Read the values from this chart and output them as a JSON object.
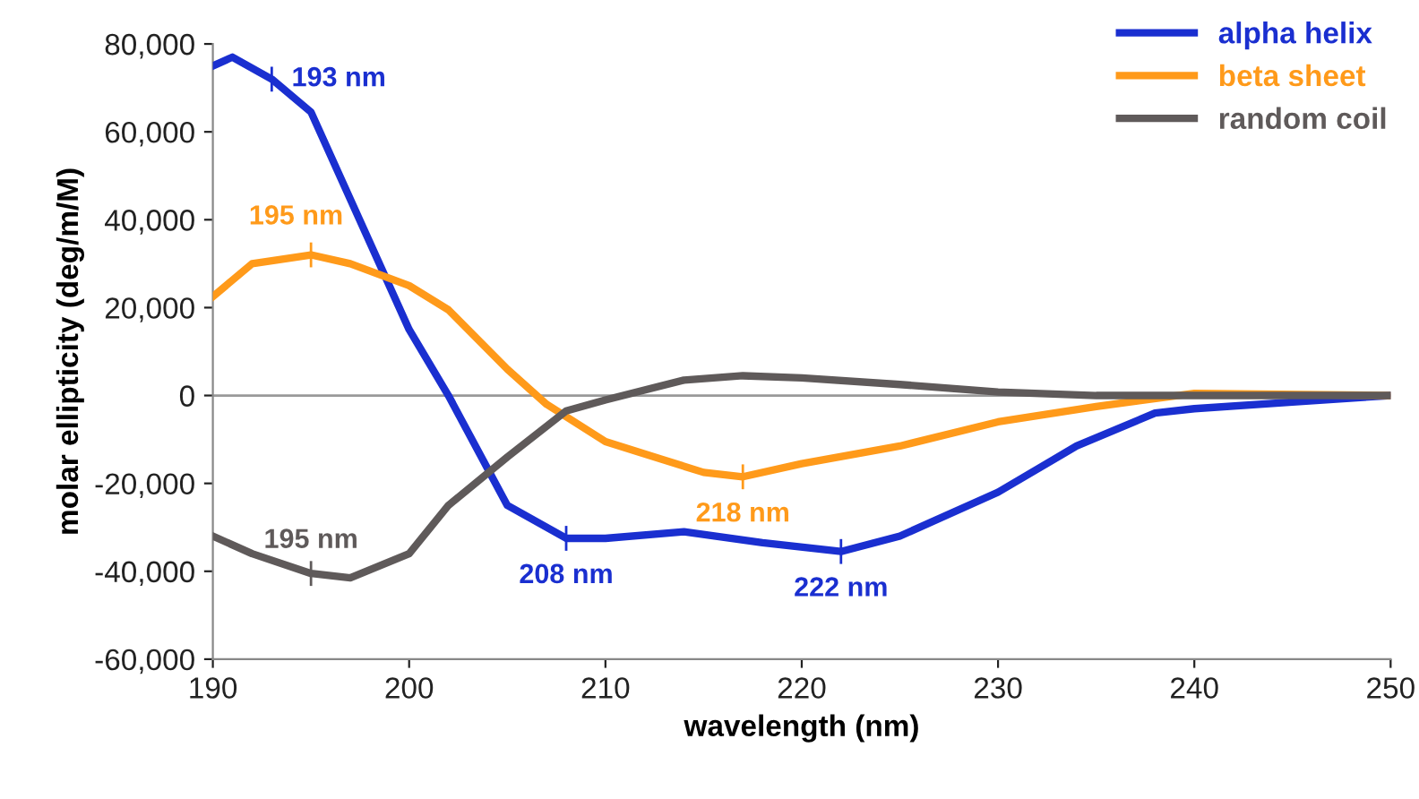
{
  "chart_data": {
    "type": "line",
    "xlabel": "wavelength (nm)",
    "ylabel": "molar ellipticity (deg/m/M)",
    "xlim": [
      190,
      250
    ],
    "xticks": [
      190,
      200,
      210,
      220,
      230,
      240,
      250
    ],
    "ylim": [
      -60000,
      80000
    ],
    "yticks": [
      {
        "value": -60000,
        "label": "-60,000"
      },
      {
        "value": -40000,
        "label": "-40,000"
      },
      {
        "value": -20000,
        "label": "-20,000"
      },
      {
        "value": 0,
        "label": "0"
      },
      {
        "value": 20000,
        "label": "20,000"
      },
      {
        "value": 40000,
        "label": "40,000"
      },
      {
        "value": 60000,
        "label": "60,000"
      },
      {
        "value": 80000,
        "label": "80,000"
      }
    ],
    "grid": false,
    "legend": "top right",
    "marker": "none",
    "line_style": "solid",
    "ref_lines": [
      {
        "axis": "y",
        "value": 0,
        "label": null,
        "color": "#999999"
      }
    ],
    "series": [
      {
        "name": "alpha helix",
        "color": "#1a2fd0",
        "x": [
          190,
          191,
          193,
          195,
          200,
          202,
          205,
          208,
          210,
          214,
          218,
          222,
          225,
          230,
          234,
          238,
          240,
          245,
          250
        ],
        "values": [
          75000,
          77000,
          72000,
          64500,
          15000,
          0,
          -25000,
          -32500,
          -32500,
          -31000,
          -33500,
          -35500,
          -32000,
          -22000,
          -11500,
          -4000,
          -3000,
          -1500,
          0
        ]
      },
      {
        "name": "beta sheet",
        "color": "#ff9a1a",
        "x": [
          190,
          192,
          195,
          197,
          200,
          202,
          205,
          207,
          210,
          215,
          217,
          220,
          225,
          230,
          235,
          240,
          250
        ],
        "values": [
          22500,
          30000,
          32000,
          30000,
          25000,
          19500,
          6000,
          -2000,
          -10500,
          -17500,
          -18500,
          -15500,
          -11500,
          -6000,
          -2500,
          500,
          0
        ]
      },
      {
        "name": "random coil",
        "color": "#5f5a5a",
        "x": [
          190,
          192,
          195,
          197,
          200,
          202,
          205,
          208,
          210,
          214,
          217,
          220,
          225,
          230,
          235,
          240,
          250
        ],
        "values": [
          -32000,
          -36000,
          -40500,
          -41500,
          -36000,
          -25000,
          -14000,
          -3500,
          -1000,
          3500,
          4500,
          4000,
          2500,
          800,
          0,
          0,
          0
        ]
      }
    ],
    "annotations": [
      {
        "text": "193 nm",
        "x": 193,
        "y": 72000
      },
      {
        "text": "195 nm",
        "x": 195,
        "y": 32000
      },
      {
        "text": "218 nm",
        "x": 217,
        "y": -18500
      },
      {
        "text": "195 nm",
        "x": 195,
        "y": -40500
      },
      {
        "text": "208 nm",
        "x": 208,
        "y": -32500
      },
      {
        "text": "222 nm",
        "x": 222,
        "y": -35500
      }
    ]
  }
}
